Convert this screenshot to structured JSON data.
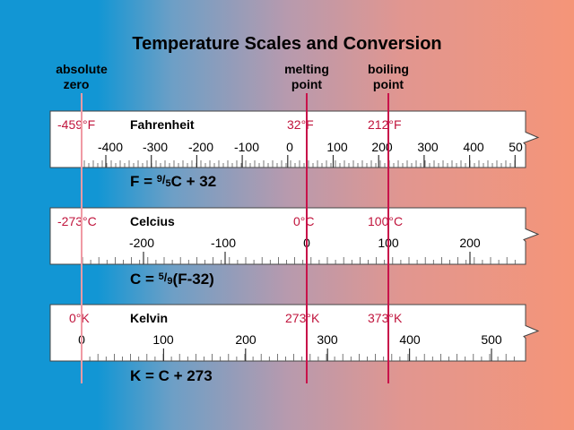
{
  "title": "Temperature Scales and Conversion",
  "markers": {
    "absolute_zero": [
      "absolute",
      "zero"
    ],
    "melting_point": [
      "melting",
      "point"
    ],
    "boiling_point": [
      "boiling",
      "point"
    ]
  },
  "scales": [
    {
      "name": "Fahrenheit",
      "abs_zero_label": "-459°F",
      "melting_label": "32°F",
      "boiling_label": "212°F",
      "ticks": [
        "-400",
        "-300",
        "-200",
        "-100",
        "0",
        "100",
        "200",
        "300",
        "400",
        "50"
      ],
      "formula": [
        "F = ",
        "9",
        "/",
        "5",
        "C + 32"
      ]
    },
    {
      "name": "Celcius",
      "abs_zero_label": "-273°C",
      "melting_label": "0°C",
      "boiling_label": "100°C",
      "ticks": [
        "-200",
        "-100",
        "0",
        "100",
        "200"
      ],
      "formula": [
        "C = ",
        "5",
        "/",
        "9",
        "(F-32)"
      ]
    },
    {
      "name": "Kelvin",
      "abs_zero_label": "0°K",
      "melting_label": "273°K",
      "boiling_label": "373°K",
      "ticks": [
        "0",
        "100",
        "200",
        "300",
        "400",
        "500"
      ],
      "formula": [
        "K = C + 273"
      ]
    }
  ],
  "colors": {
    "background_left": "#1296d4",
    "background_right": "#f59578",
    "marker_line": "#c8124a",
    "abs_zero_line": "#f09aa4",
    "label_red": "#c0143c",
    "text": "#000000",
    "ruler_fill": "#ffffff"
  }
}
